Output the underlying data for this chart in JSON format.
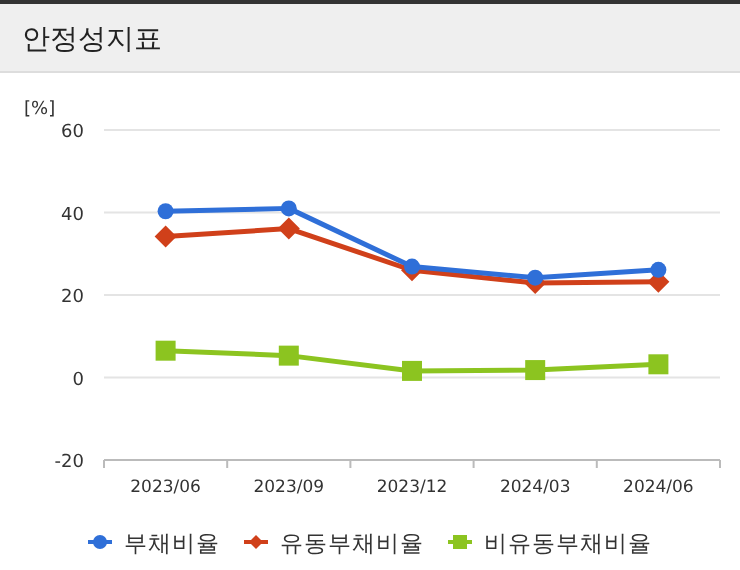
{
  "chart_data": {
    "type": "line",
    "title": "안정성지표",
    "ylabel": "[%]",
    "categories": [
      "2023/06",
      "2023/09",
      "2023/12",
      "2024/03",
      "2024/06"
    ],
    "series": [
      {
        "name": "부채비율",
        "color": "#2f6fd8",
        "marker": "circle",
        "values": [
          40.3,
          41.0,
          26.9,
          24.2,
          26.1
        ]
      },
      {
        "name": "유동부채비율",
        "color": "#d0401a",
        "marker": "diamond",
        "values": [
          34.2,
          36.1,
          26.0,
          22.9,
          23.2
        ]
      },
      {
        "name": "비유동부채비율",
        "color": "#8cc420",
        "marker": "square",
        "values": [
          6.5,
          5.3,
          1.6,
          1.8,
          3.2
        ]
      }
    ],
    "ylim": [
      -20,
      60
    ],
    "yticks": [
      -20,
      0,
      20,
      40,
      60
    ],
    "grid": "y",
    "legend": "bottom",
    "line_style": "solid"
  }
}
